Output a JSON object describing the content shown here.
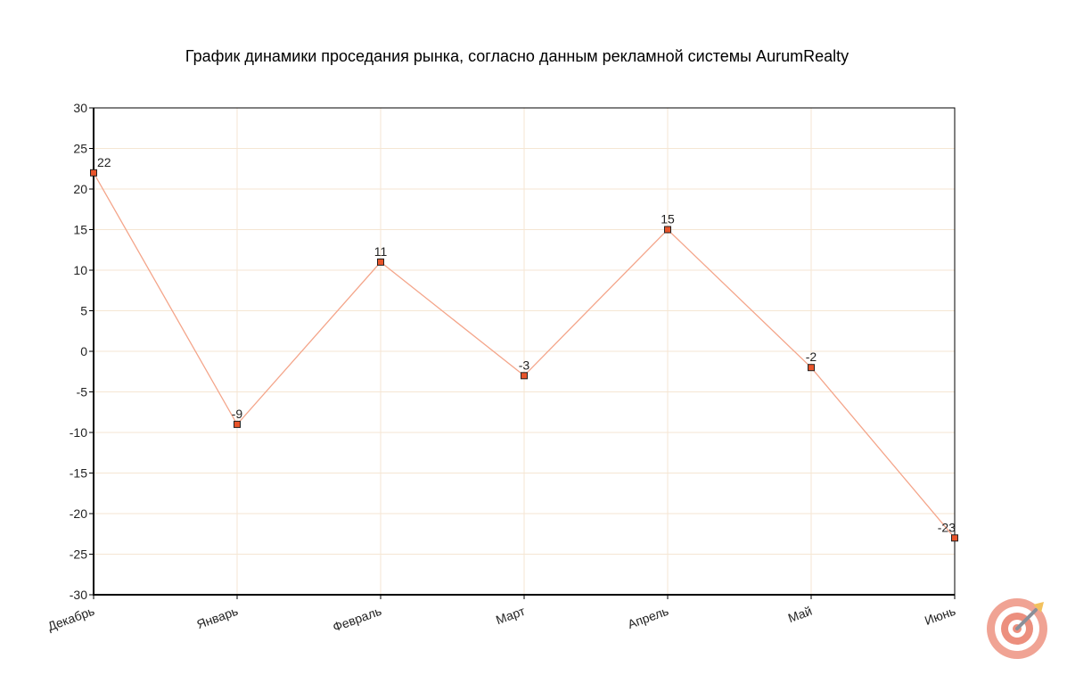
{
  "chart_data": {
    "type": "line",
    "title": "График динамики проседания рынка, согласно данным рекламной системы AurumRealty",
    "categories": [
      "Декабрь",
      "Январь",
      "Февраль",
      "Март",
      "Апрель",
      "Май",
      "Июнь"
    ],
    "series": [
      {
        "values": [
          22,
          -9,
          11,
          -3,
          15,
          -2,
          -23
        ],
        "color": "#f4a58a",
        "marker_color": "#e8542a"
      }
    ],
    "data_labels": [
      "22",
      "-9",
      "11",
      "-3",
      "15",
      "-2",
      "-23"
    ],
    "ylim": [
      -30,
      30
    ],
    "yticks": [
      30,
      25,
      20,
      15,
      10,
      5,
      0,
      -5,
      -10,
      -15,
      -20,
      -25,
      -30
    ],
    "grid": true,
    "grid_color": "#f5e6d3",
    "logo": "target-dart-icon"
  }
}
